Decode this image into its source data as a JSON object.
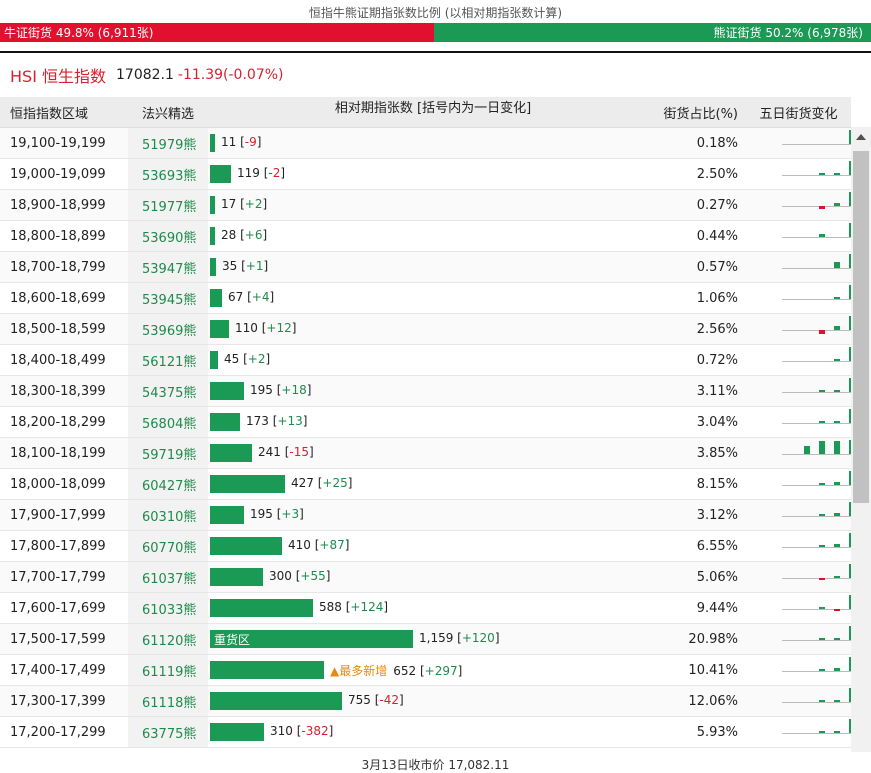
{
  "title": "恒指牛熊证期指张数比例 (以相对期指张数计算)",
  "ratio": {
    "bull_label": "牛证街货 49.8% (6,911张)",
    "bear_label": "熊证街货 50.2% (6,978张)",
    "bull_pct": 49.8,
    "bear_pct": 50.2,
    "bull_color": "#e0102e",
    "bear_color": "#1a9a55"
  },
  "index": {
    "name": "HSI 恒生指数",
    "value": "17082.1",
    "change": "-11.39(-0.07%)"
  },
  "headers": {
    "range": "恒指指数区域",
    "pick": "法兴精选",
    "count": "相对期指张数 [括号内为一日变化]",
    "share": "街货占比(%)",
    "five_day": "五日街货变化"
  },
  "rows": [
    {
      "range": "19,100-19,199",
      "pick": "51979熊",
      "count": 11,
      "count_text": "11",
      "delta": "-9",
      "share": "0.18%",
      "tag": "",
      "spark": [
        0,
        0,
        0,
        1.0,
        -0.5
      ]
    },
    {
      "range": "19,000-19,099",
      "pick": "53693熊",
      "count": 119,
      "count_text": "119",
      "delta": "-2",
      "share": "2.50%",
      "tag": "",
      "spark": [
        0,
        0.1,
        0.1,
        1.0,
        -0.1
      ]
    },
    {
      "range": "18,900-18,999",
      "pick": "51977熊",
      "count": 17,
      "count_text": "17",
      "delta": "+2",
      "share": "0.27%",
      "tag": "",
      "spark": [
        0,
        -0.2,
        0.2,
        1.0,
        0.1
      ]
    },
    {
      "range": "18,800-18,899",
      "pick": "53690熊",
      "count": 28,
      "count_text": "28",
      "delta": "+6",
      "share": "0.44%",
      "tag": "",
      "spark": [
        0,
        0.2,
        0,
        1.0,
        0.4
      ]
    },
    {
      "range": "18,700-18,799",
      "pick": "53947熊",
      "count": 35,
      "count_text": "35",
      "delta": "+1",
      "share": "0.57%",
      "tag": "",
      "spark": [
        0,
        0,
        0.4,
        1.0,
        0.4
      ]
    },
    {
      "range": "18,600-18,699",
      "pick": "53945熊",
      "count": 67,
      "count_text": "67",
      "delta": "+4",
      "share": "1.06%",
      "tag": "",
      "spark": [
        0,
        0,
        0.1,
        1.0,
        0.1
      ]
    },
    {
      "range": "18,500-18,599",
      "pick": "53969熊",
      "count": 110,
      "count_text": "110",
      "delta": "+12",
      "share": "2.56%",
      "tag": "",
      "spark": [
        0,
        -0.3,
        0.3,
        1.0,
        0.3
      ]
    },
    {
      "range": "18,400-18,499",
      "pick": "56121熊",
      "count": 45,
      "count_text": "45",
      "delta": "+2",
      "share": "0.72%",
      "tag": "",
      "spark": [
        0,
        0,
        0.1,
        1.0,
        0.1
      ]
    },
    {
      "range": "18,300-18,399",
      "pick": "54375熊",
      "count": 195,
      "count_text": "195",
      "delta": "+18",
      "share": "3.11%",
      "tag": "",
      "spark": [
        0,
        0.1,
        0.1,
        1.0,
        0.2
      ]
    },
    {
      "range": "18,200-18,299",
      "pick": "56804熊",
      "count": 173,
      "count_text": "173",
      "delta": "+13",
      "share": "3.04%",
      "tag": "",
      "spark": [
        0,
        0.1,
        0.1,
        1.0,
        0.2
      ]
    },
    {
      "range": "18,100-18,199",
      "pick": "59719熊",
      "count": 241,
      "count_text": "241",
      "delta": "-15",
      "share": "3.85%",
      "tag": "",
      "spark": [
        0.6,
        0.9,
        0.9,
        1.0,
        -0.3
      ]
    },
    {
      "range": "18,000-18,099",
      "pick": "60427熊",
      "count": 427,
      "count_text": "427",
      "delta": "+25",
      "share": "8.15%",
      "tag": "",
      "spark": [
        0,
        0.1,
        0.2,
        1.0,
        0.2
      ]
    },
    {
      "range": "17,900-17,999",
      "pick": "60310熊",
      "count": 195,
      "count_text": "195",
      "delta": "+3",
      "share": "3.12%",
      "tag": "",
      "spark": [
        0,
        0.1,
        0.2,
        1.0,
        0.1
      ]
    },
    {
      "range": "17,800-17,899",
      "pick": "60770熊",
      "count": 410,
      "count_text": "410",
      "delta": "+87",
      "share": "6.55%",
      "tag": "",
      "spark": [
        0,
        0.1,
        0.2,
        1.0,
        0.8
      ]
    },
    {
      "range": "17,700-17,799",
      "pick": "61037熊",
      "count": 300,
      "count_text": "300",
      "delta": "+55",
      "share": "5.06%",
      "tag": "",
      "spark": [
        0,
        -0.1,
        0.1,
        1.0,
        0.8
      ]
    },
    {
      "range": "17,600-17,699",
      "pick": "61033熊",
      "count": 588,
      "count_text": "588",
      "delta": "+124",
      "share": "9.44%",
      "tag": "",
      "spark": [
        0,
        0.1,
        -0.1,
        1.0,
        0.5
      ]
    },
    {
      "range": "17,500-17,599",
      "pick": "61120熊",
      "count": 1159,
      "count_text": "1,159",
      "delta": "+120",
      "share": "20.98%",
      "tag": "重货区",
      "spark": [
        0,
        0.1,
        0.1,
        1.0,
        0.4
      ]
    },
    {
      "range": "17,400-17,499",
      "pick": "61119熊",
      "count": 652,
      "count_text": "652",
      "delta": "+297",
      "share": "10.41%",
      "tag": "▲最多新增",
      "spark": [
        0,
        0.1,
        0.2,
        1.0,
        1.0
      ]
    },
    {
      "range": "17,300-17,399",
      "pick": "61118熊",
      "count": 755,
      "count_text": "755",
      "delta": "-42",
      "share": "12.06%",
      "tag": "",
      "spark": [
        0,
        0.1,
        0.1,
        1.0,
        -0.3
      ]
    },
    {
      "range": "17,200-17,299",
      "pick": "63775熊",
      "count": 310,
      "count_text": "310",
      "delta": "-382",
      "share": "5.93%",
      "tag": "",
      "spark": [
        0,
        0.1,
        0.1,
        1.0,
        -1.2
      ]
    }
  ],
  "footer": "3月13日收市价 17,082.11",
  "colors": {
    "green": "#1a9a55",
    "red": "#e0102e",
    "pick_text": "#1e8a4c"
  }
}
